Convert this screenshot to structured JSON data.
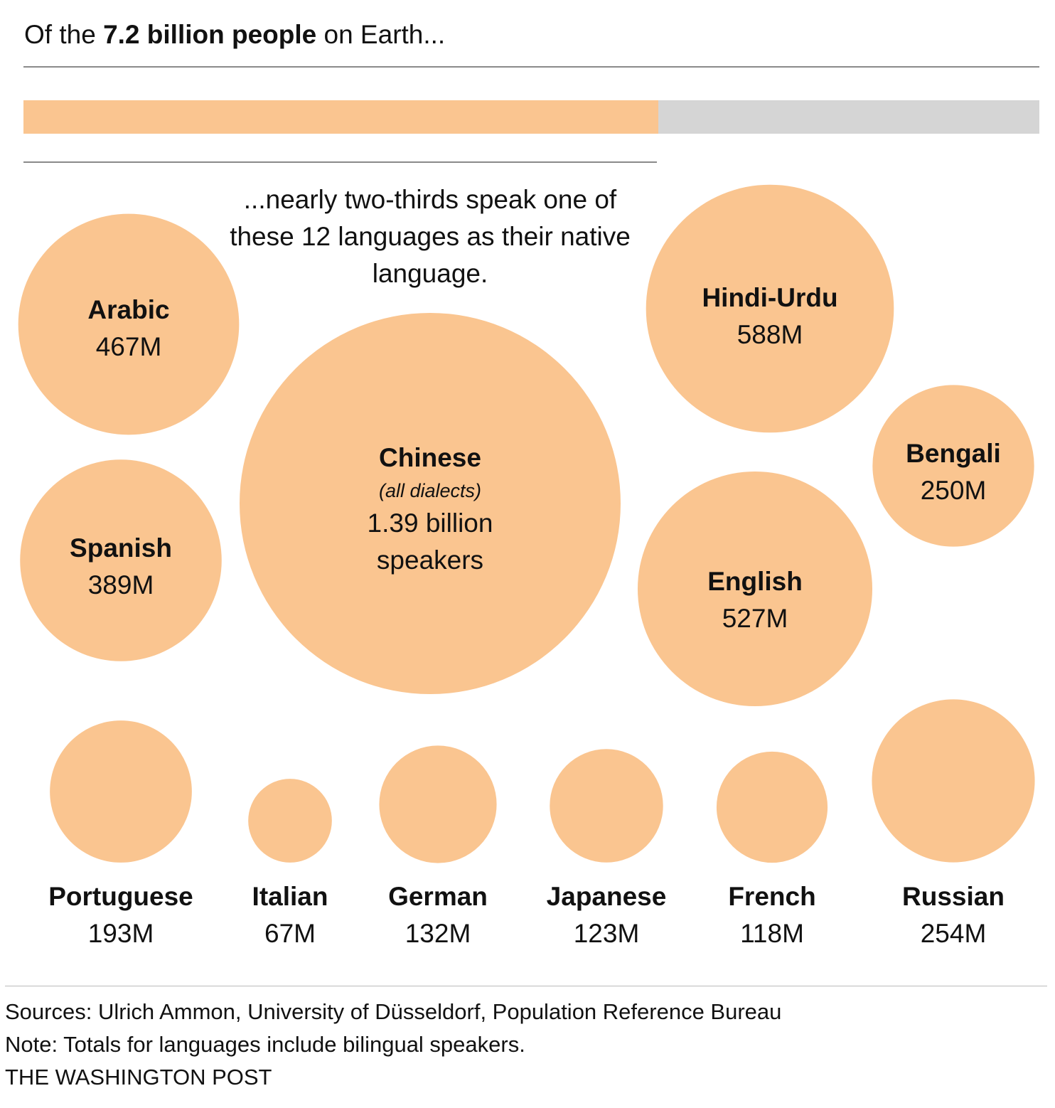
{
  "headline": {
    "pre": "Of the ",
    "bold": "7.2 billion people",
    "post": " on Earth..."
  },
  "total_bar": {
    "fraction": 0.625,
    "fill_color": "#FAC590",
    "rest_color": "#D5D5D5"
  },
  "subhead": "...nearly two-thirds speak one of these 12 languages as their native language.",
  "chart_data": {
    "type": "scatter",
    "encoding": "bubble area proportional to native speakers",
    "bubble_color": "#FAC590",
    "unit": "millions of speakers",
    "series": [
      {
        "name": "Arabic",
        "value": 467,
        "label": "467M"
      },
      {
        "name": "Chinese",
        "note": "(all dialects)",
        "value": 1390,
        "label": "1.39 billion",
        "label2": "speakers"
      },
      {
        "name": "Hindi-Urdu",
        "value": 588,
        "label": "588M"
      },
      {
        "name": "Bengali",
        "value": 250,
        "label": "250M"
      },
      {
        "name": "Spanish",
        "value": 389,
        "label": "389M"
      },
      {
        "name": "English",
        "value": 527,
        "label": "527M"
      },
      {
        "name": "Portuguese",
        "value": 193,
        "label": "193M"
      },
      {
        "name": "Italian",
        "value": 67,
        "label": "67M"
      },
      {
        "name": "German",
        "value": 132,
        "label": "132M"
      },
      {
        "name": "Japanese",
        "value": 123,
        "label": "123M"
      },
      {
        "name": "French",
        "value": 118,
        "label": "118M"
      },
      {
        "name": "Russian",
        "value": 254,
        "label": "254M"
      }
    ]
  },
  "footer": {
    "sources": "Sources: Ulrich Ammon, University of Düsseldorf, Population Reference Bureau",
    "note": "Note: Totals for languages include bilingual speakers.",
    "credit": "THE WASHINGTON POST"
  }
}
